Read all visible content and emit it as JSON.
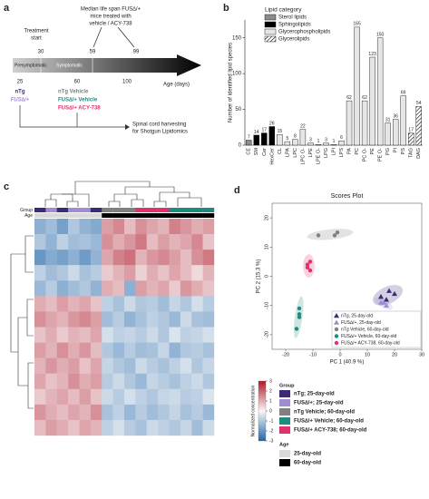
{
  "panel_labels": [
    "a",
    "b",
    "c",
    "d"
  ],
  "diagram": {
    "median_lines": [
      "Median life span FUS∆/+",
      "mice treated with",
      "vehicle / ACY-738"
    ],
    "treatment_lines": [
      "Treatment",
      "start"
    ],
    "top_ages": [
      "30",
      "59",
      "99"
    ],
    "phases": [
      "Presymptomatic",
      "Symptomatic"
    ],
    "bottom_ages": [
      "25",
      "60",
      "100"
    ],
    "axis_label": "Age (days)",
    "young_groups": [
      "nTg",
      "FUS∆/+"
    ],
    "old_groups": [
      "nTg Vehicle",
      "FUS∆/+ Vehicle",
      "FUS∆/+ ACY-738"
    ],
    "harvest_lines": [
      "Spinal cord harvesting",
      "for Shotgun Lipidomics"
    ]
  },
  "chart_data": [
    {
      "type": "bar",
      "y_label": "Number of identified lipid species",
      "legend_title": "Lipid category",
      "groups": [
        {
          "name": "Sterol lipids",
          "color": "#8c8c8c"
        },
        {
          "name": "Sphingolipids",
          "color": "#000000"
        },
        {
          "name": "Glycerophospholipids",
          "color": "#e6e6e6"
        },
        {
          "name": "Glycerolipids",
          "color": "#ffffff",
          "hatched": true
        }
      ],
      "categories": [
        "CE",
        "SM",
        "Cer",
        "HexCer",
        "CL",
        "LPA",
        "LPC",
        "LPC O-",
        "LPE",
        "LPE O-",
        "LPG",
        "LPI",
        "LPS",
        "PA",
        "PC",
        "PC O-",
        "PE",
        "PE O-",
        "PG",
        "PI",
        "PS",
        "TAG",
        "DAG"
      ],
      "values": [
        7,
        14,
        17,
        26,
        15,
        5,
        8,
        22,
        3,
        1,
        3,
        1,
        6,
        62,
        165,
        62,
        123,
        150,
        31,
        36,
        69,
        17,
        54
      ],
      "bar_group": [
        0,
        1,
        1,
        1,
        2,
        2,
        2,
        2,
        2,
        2,
        2,
        2,
        2,
        2,
        2,
        2,
        2,
        2,
        2,
        2,
        2,
        3,
        3
      ],
      "ylim": [
        0,
        175
      ],
      "yticks": [
        0,
        50,
        100,
        150
      ]
    },
    {
      "type": "heatmap",
      "row_labels": [
        "Group",
        "Age"
      ],
      "group_title": "Group",
      "age_title": "Age",
      "colorbar_label": "Normalized concentration",
      "color_lim": [
        -3,
        3
      ],
      "color_ticks": [
        3,
        2,
        1,
        0,
        -1,
        -2,
        -3
      ],
      "groups": [
        {
          "name": "nTg; 25-day-old",
          "color": "#3b2a7a"
        },
        {
          "name": "FUS∆/+; 25-day-old",
          "color": "#a08cd0"
        },
        {
          "name": "nTg Vehicle; 60-day-old",
          "color": "#808080"
        },
        {
          "name": "FUS∆/+ Vehicle; 60-day-old",
          "color": "#1f8a80"
        },
        {
          "name": "FUS∆/+ ACY-738; 60-day-old",
          "color": "#e0306f"
        }
      ],
      "ages": [
        {
          "name": "25-day-old",
          "color": "#d9d9d9"
        },
        {
          "name": "60-day-old",
          "color": "#000000"
        }
      ],
      "column_group": [
        0,
        1,
        0,
        1,
        1,
        0,
        2,
        2,
        2,
        4,
        4,
        4,
        3,
        3,
        3,
        3
      ],
      "column_age": [
        0,
        0,
        0,
        0,
        0,
        0,
        1,
        1,
        1,
        1,
        1,
        1,
        1,
        1,
        1,
        1
      ],
      "values": [
        [
          -1.5,
          -1.2,
          -1.8,
          -1,
          -1.4,
          -1.6,
          1.2,
          1.5,
          0.8,
          1.4,
          1.1,
          0.9,
          1.6,
          1.3,
          1,
          1.2
        ],
        [
          -1,
          -1.4,
          -0.8,
          -1.2,
          -1.1,
          -1.3,
          1.4,
          1,
          1.3,
          1.7,
          0.8,
          1.2,
          0.9,
          1.1,
          1.5,
          0.7
        ],
        [
          -2,
          -1.6,
          -1.8,
          -1.5,
          -1.9,
          -1.4,
          1.1,
          1.6,
          1.8,
          0.9,
          1.3,
          1.5,
          1.2,
          0.8,
          1.4,
          1.7
        ],
        [
          -0.8,
          -1.2,
          -1,
          -0.6,
          -1.1,
          -0.9,
          0.6,
          0.9,
          1.2,
          0.5,
          1,
          0.7,
          1.1,
          0.8,
          0.4,
          0.9
        ],
        [
          -1.3,
          -0.9,
          -1.5,
          -1.2,
          -1,
          -1.4,
          1,
          0.8,
          -1.5,
          1.2,
          0.9,
          1.1,
          0.6,
          1.3,
          1,
          0.7
        ],
        [
          1,
          0.8,
          1.2,
          0.9,
          1.1,
          0.7,
          -0.8,
          -1.1,
          -0.6,
          -1,
          -0.9,
          -1.2,
          -0.7,
          -1,
          -0.5,
          -0.9
        ],
        [
          1.4,
          1.1,
          0.9,
          1.3,
          1.5,
          1.2,
          -1.2,
          -0.9,
          -1.4,
          -1.1,
          -0.8,
          -1,
          -1.3,
          -0.6,
          -1.1,
          -1.2
        ],
        [
          0.7,
          1,
          0.6,
          0.9,
          0.8,
          1.1,
          -0.5,
          -0.8,
          -0.7,
          -0.9,
          -0.6,
          -1,
          -0.4,
          -0.8,
          -0.7,
          -0.5
        ],
        [
          1.2,
          0.9,
          1.4,
          1,
          1.3,
          0.8,
          -1,
          -1.3,
          -0.9,
          -1.2,
          -1.1,
          -0.7,
          -1.4,
          -1,
          -0.9,
          -1.1
        ],
        [
          0.9,
          1.3,
          1,
          1.2,
          0.7,
          1.1,
          -0.7,
          -1,
          -1.2,
          -0.6,
          -0.9,
          -1.1,
          -0.8,
          -0.5,
          -1,
          -0.7
        ],
        [
          1.1,
          0.7,
          0.9,
          1.4,
          1,
          1.2,
          -0.9,
          -0.6,
          -1,
          -1.3,
          -0.7,
          -0.9,
          -1.1,
          -0.8,
          -0.6,
          -1
        ],
        [
          0.6,
          0.9,
          1.1,
          0.8,
          1.2,
          0.7,
          -0.6,
          -0.9,
          -0.5,
          -0.8,
          -1,
          -0.7,
          -0.6,
          -0.9,
          -0.8,
          -0.4
        ],
        [
          1.3,
          1,
          0.8,
          1.1,
          0.9,
          1.4,
          -1.1,
          -0.8,
          -1.3,
          -0.9,
          -1.2,
          -1,
          -0.7,
          -1.1,
          -0.9,
          -1.3
        ],
        [
          0.8,
          1.2,
          1,
          0.7,
          1.1,
          0.9,
          -0.8,
          -0.5,
          -0.9,
          -1.1,
          -0.6,
          -0.8,
          -1,
          -0.7,
          -1.2,
          -0.6
        ]
      ]
    },
    {
      "type": "scatter",
      "title": "Scores Plot",
      "x_label": "PC 1 (40.9 %)",
      "y_label": "PC 2 (15.3 %)",
      "xlim": [
        -25,
        30
      ],
      "ylim": [
        -25,
        25
      ],
      "xticks": [
        -20,
        -10,
        0,
        10,
        20,
        30
      ],
      "yticks": [
        -20,
        -10,
        0,
        10,
        20
      ],
      "series": [
        {
          "name": "nTg, 25-day-old",
          "color": "#3b2a7a",
          "marker": "triangle",
          "x": [
            15,
            18,
            20,
            17
          ],
          "values": [
            -7,
            -5,
            -6,
            -8
          ]
        },
        {
          "name": "FUS∆/+, 25-day-old",
          "color": "#a08cd0",
          "marker": "triangle",
          "x": [
            16,
            17,
            15
          ],
          "values": [
            -9,
            -10,
            -9
          ]
        },
        {
          "name": "nTg Vehicle, 60-day-old",
          "color": "#808080",
          "marker": "circle",
          "x": [
            -8,
            -2,
            -1
          ],
          "values": [
            14,
            14,
            15
          ]
        },
        {
          "name": "FUS∆/+ Vehicle, 60-day-old",
          "color": "#1f8a80",
          "marker": "circle",
          "x": [
            -15,
            -15,
            -16,
            -15
          ],
          "values": [
            -11,
            -14,
            -18,
            -13
          ]
        },
        {
          "name": "FUS∆/+ ACY-738, 60-day-old",
          "color": "#e0306f",
          "marker": "circle",
          "x": [
            -11,
            -12,
            -11,
            -12
          ],
          "values": [
            5,
            3,
            2,
            4
          ]
        }
      ]
    }
  ]
}
